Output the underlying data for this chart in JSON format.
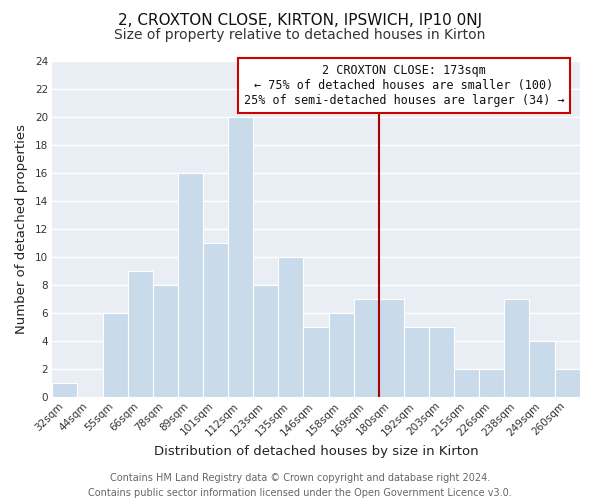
{
  "title": "2, CROXTON CLOSE, KIRTON, IPSWICH, IP10 0NJ",
  "subtitle": "Size of property relative to detached houses in Kirton",
  "xlabel": "Distribution of detached houses by size in Kirton",
  "ylabel": "Number of detached properties",
  "footer_lines": [
    "Contains HM Land Registry data © Crown copyright and database right 2024.",
    "Contains public sector information licensed under the Open Government Licence v3.0."
  ],
  "categories": [
    "32sqm",
    "44sqm",
    "55sqm",
    "66sqm",
    "78sqm",
    "89sqm",
    "101sqm",
    "112sqm",
    "123sqm",
    "135sqm",
    "146sqm",
    "158sqm",
    "169sqm",
    "180sqm",
    "192sqm",
    "203sqm",
    "215sqm",
    "226sqm",
    "238sqm",
    "249sqm",
    "260sqm"
  ],
  "values": [
    1,
    0,
    6,
    9,
    8,
    16,
    11,
    20,
    8,
    10,
    5,
    6,
    7,
    7,
    5,
    5,
    2,
    2,
    7,
    4,
    2
  ],
  "bar_color": "#c9daea",
  "bar_edge_color": "#ffffff",
  "reference_line_index": 13,
  "reference_line_color": "#aa0000",
  "annotation_text_line1": "2 CROXTON CLOSE: 173sqm",
  "annotation_text_line2": "← 75% of detached houses are smaller (100)",
  "annotation_text_line3": "25% of semi-detached houses are larger (34) →",
  "annotation_box_color": "#ffffff",
  "annotation_box_edge_color": "#cc0000",
  "ylim": [
    0,
    24
  ],
  "yticks": [
    0,
    2,
    4,
    6,
    8,
    10,
    12,
    14,
    16,
    18,
    20,
    22,
    24
  ],
  "plot_bg_color": "#e8eef4",
  "outer_bg_color": "#ffffff",
  "grid_color": "#ffffff",
  "title_fontsize": 11,
  "subtitle_fontsize": 10,
  "axis_label_fontsize": 9.5,
  "tick_fontsize": 7.5,
  "annotation_fontsize": 8.5,
  "footer_fontsize": 7
}
